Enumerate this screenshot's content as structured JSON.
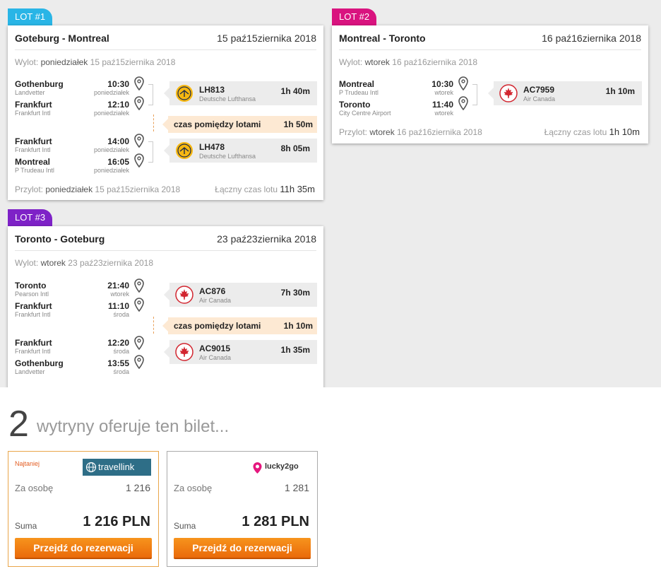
{
  "colors": {
    "lot1": "#29b5e6",
    "lot2": "#d9137f",
    "lot3": "#7e22c7",
    "cta": "#f07b13",
    "best_border": "#e9a64a",
    "layover_bg": "#fde9d3"
  },
  "flights": [
    {
      "tag": "LOT #1",
      "title": "Goteburg - Montreal",
      "date": "15 paź15ziernika 2018",
      "departure": {
        "label": "Wylot:",
        "day": "poniedziałek",
        "date": "15 paź15ziernika 2018"
      },
      "segments": [
        {
          "from": {
            "city": "Gothenburg",
            "airport": "Landvetter",
            "time": "10:30",
            "day": "poniedziałek"
          },
          "to": {
            "city": "Frankfurt",
            "airport": "Frankfurt Intl",
            "time": "12:10",
            "day": "poniedziałek"
          },
          "code": "LH813",
          "airline": "Deutsche Lufthansa",
          "duration": "1h 40m",
          "logo": "lufthansa-crane-icon"
        },
        {
          "from": {
            "city": "Frankfurt",
            "airport": "Frankfurt Intl",
            "time": "14:00",
            "day": "poniedziałek"
          },
          "to": {
            "city": "Montreal",
            "airport": "P Trudeau Intl",
            "time": "16:05",
            "day": "poniedziałek"
          },
          "code": "LH478",
          "airline": "Deutsche Lufthansa",
          "duration": "8h 05m",
          "logo": "lufthansa-crane-icon"
        }
      ],
      "layover": {
        "label": "czas pomiędzy lotami",
        "value": "1h 50m"
      },
      "arrival": {
        "label": "Przylot:",
        "day": "poniedziałek",
        "date": "15 paź15ziernika 2018"
      },
      "total": {
        "label": "Łączny czas lotu",
        "value": "11h 35m"
      }
    },
    {
      "tag": "LOT #2",
      "title": "Montreal - Toronto",
      "date": "16 paź16ziernika 2018",
      "departure": {
        "label": "Wylot:",
        "day": "wtorek",
        "date": "16 paź16ziernika 2018"
      },
      "segments": [
        {
          "from": {
            "city": "Montreal",
            "airport": "P Trudeau Intl",
            "time": "10:30",
            "day": "wtorek"
          },
          "to": {
            "city": "Toronto",
            "airport": "City Centre Airport",
            "time": "11:40",
            "day": "wtorek"
          },
          "code": "AC7959",
          "airline": "Air Canada",
          "duration": "1h 10m",
          "logo": "air-canada-maple-icon"
        }
      ],
      "arrival": {
        "label": "Przylot:",
        "day": "wtorek",
        "date": "16 paź16ziernika 2018"
      },
      "total": {
        "label": "Łączny czas lotu",
        "value": "1h 10m"
      }
    },
    {
      "tag": "LOT #3",
      "title": "Toronto - Goteburg",
      "date": "23 paź23ziernika 2018",
      "departure": {
        "label": "Wylot:",
        "day": "wtorek",
        "date": "23 paź23ziernika 2018"
      },
      "segments": [
        {
          "from": {
            "city": "Toronto",
            "airport": "Pearson Intl",
            "time": "21:40",
            "day": "wtorek"
          },
          "to": {
            "city": "Frankfurt",
            "airport": "Frankfurt Intl",
            "time": "11:10",
            "day": "środa"
          },
          "code": "AC876",
          "airline": "Air Canada",
          "duration": "7h 30m",
          "logo": "air-canada-maple-icon"
        },
        {
          "from": {
            "city": "Frankfurt",
            "airport": "Frankfurt Intl",
            "time": "12:20",
            "day": "środa"
          },
          "to": {
            "city": "Gothenburg",
            "airport": "Landvetter",
            "time": "13:55",
            "day": "środa"
          },
          "code": "AC9015",
          "airline": "Air Canada",
          "duration": "1h 35m",
          "logo": "air-canada-maple-icon"
        }
      ],
      "layover": {
        "label": "czas pomiędzy lotami",
        "value": "1h 10m"
      }
    }
  ],
  "offers": {
    "count": "2",
    "text": "wytryny oferuje ten bilet...",
    "items": [
      {
        "badge": "Najtaniej",
        "logo": "travellink",
        "per_label": "Za osobę",
        "per_value": "1 216",
        "sum_label": "Suma",
        "sum_value": "1 216 PLN",
        "cta": "Przejdź do rezerwacji"
      },
      {
        "logo": "lucky2go",
        "per_label": "Za osobę",
        "per_value": "1 281",
        "sum_label": "Suma",
        "sum_value": "1 281 PLN",
        "cta": "Przejdź do rezerwacji"
      }
    ]
  }
}
